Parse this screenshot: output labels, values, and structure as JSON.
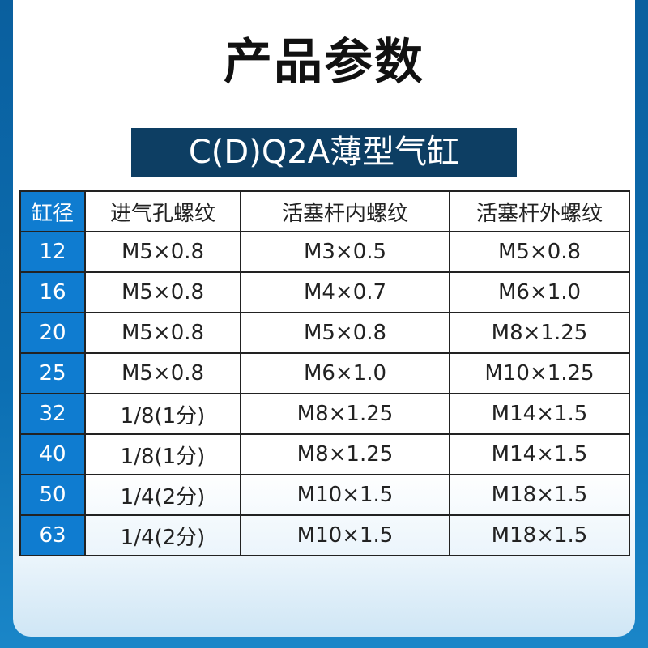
{
  "page": {
    "title": "产品参数",
    "subtitle": "C(D)Q2A薄型气缸"
  },
  "table": {
    "headers": [
      "缸径",
      "进气孔螺纹",
      "活塞杆内螺纹",
      "活塞杆外螺纹"
    ],
    "rows": [
      [
        "12",
        "M5×0.8",
        "M3×0.5",
        "M5×0.8"
      ],
      [
        "16",
        "M5×0.8",
        "M4×0.7",
        "M6×1.0"
      ],
      [
        "20",
        "M5×0.8",
        "M5×0.8",
        "M8×1.25"
      ],
      [
        "25",
        "M5×0.8",
        "M6×1.0",
        "M10×1.25"
      ],
      [
        "32",
        "1/8(1分)",
        "M8×1.25",
        "M14×1.5"
      ],
      [
        "40",
        "1/8(1分)",
        "M8×1.25",
        "M14×1.5"
      ],
      [
        "50",
        "1/4(2分)",
        "M10×1.5",
        "M18×1.5"
      ],
      [
        "63",
        "1/4(2分)",
        "M10×1.5",
        "M18×1.5"
      ]
    ]
  },
  "colors": {
    "accent": "#0f7cd0",
    "banner": "#0d3e63",
    "border_frame": "#0a6fb6"
  }
}
